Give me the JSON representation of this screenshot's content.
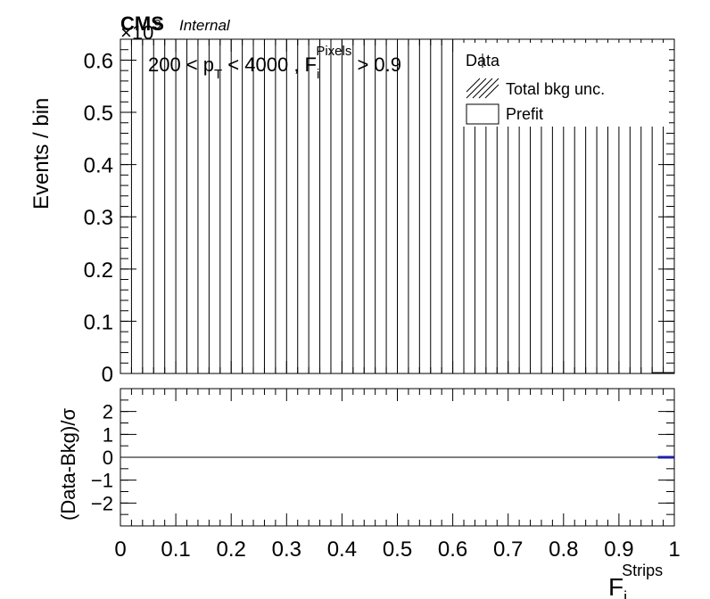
{
  "header": {
    "cms": "CMS",
    "internal": "Internal",
    "exponent_base": "×10",
    "exponent_power": "9"
  },
  "selection": {
    "pt_range": "200 < p",
    "pt_sub": "T",
    "pt_upper": " < 4000 , F",
    "f_sub": "i",
    "f_sup": "Pixels",
    "cut": " > 0.9"
  },
  "legend": {
    "data": "Data",
    "unc": "Total bkg unc.",
    "prefit": "Prefit"
  },
  "chart_data": [
    {
      "type": "bar",
      "panel": "main",
      "ylabel": "Events / bin",
      "y_scale_factor": "×10^9",
      "ylim": [
        0,
        0.64
      ],
      "yticks": [
        "0",
        "0.1",
        "0.2",
        "0.3",
        "0.4",
        "0.5",
        "0.6"
      ],
      "xlim": [
        0,
        1
      ],
      "nbins": 50,
      "vertical_bin_lines_note": "black vertical lines fill plot (hatched uncertainty band)",
      "values_last_bins": [
        {
          "x": 0.97,
          "y": 0.0
        },
        {
          "x": 0.99,
          "y": 0.0
        }
      ]
    },
    {
      "type": "line",
      "panel": "ratio",
      "ylabel": "(Data-Bkg)/σ",
      "ylim": [
        -3,
        3
      ],
      "yticks": [
        "−2",
        "−1",
        "0",
        "1",
        "2"
      ],
      "xlabel": "F",
      "xlabel_sub": "i",
      "xlabel_sup": "Strips",
      "xticks": [
        "0",
        "0.1",
        "0.2",
        "0.3",
        "0.4",
        "0.5",
        "0.6",
        "0.7",
        "0.8",
        "0.9",
        "1"
      ],
      "series": [
        {
          "name": "pull",
          "x": [
            0.98,
            0.99
          ],
          "values": [
            0,
            0
          ]
        }
      ]
    }
  ]
}
